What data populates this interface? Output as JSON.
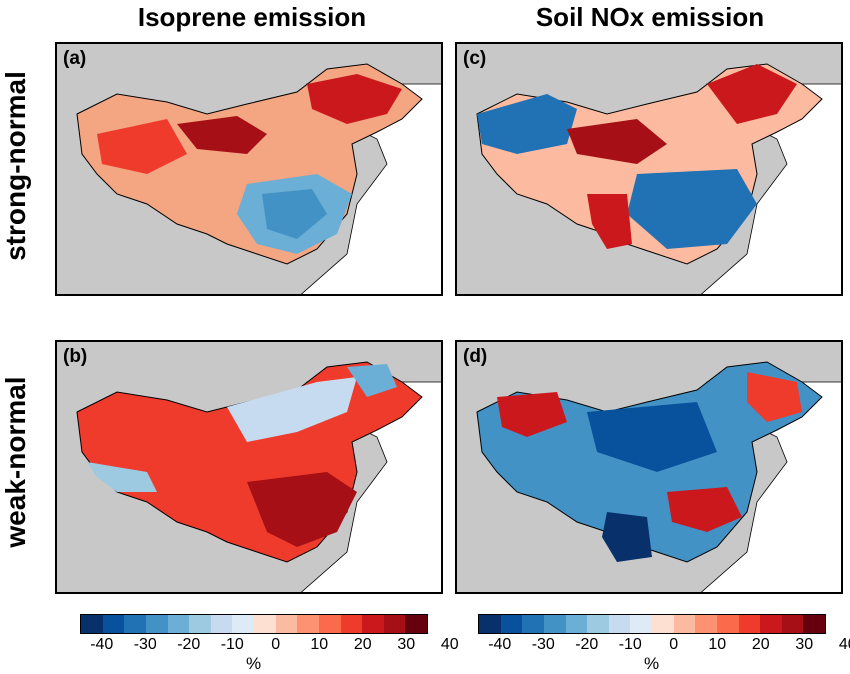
{
  "columns": [
    "Isoprene emission",
    "Soil NOx emission"
  ],
  "rows": [
    "strong-normal",
    "weak-normal"
  ],
  "panels": [
    {
      "label": "(a)",
      "variable": "Isoprene emission",
      "comparison": "strong-normal"
    },
    {
      "label": "(b)",
      "variable": "Isoprene emission",
      "comparison": "weak-normal"
    },
    {
      "label": "(c)",
      "variable": "Soil NOx emission",
      "comparison": "strong-normal"
    },
    {
      "label": "(d)",
      "variable": "Soil NOx emission",
      "comparison": "weak-normal"
    }
  ],
  "colorbar": {
    "ticks": [
      "-40",
      "-30",
      "-20",
      "-10",
      "0",
      "10",
      "20",
      "30",
      "40"
    ],
    "unit": "%",
    "range": [
      -45,
      45
    ],
    "colors": [
      "#08306b",
      "#08519c",
      "#2171b5",
      "#4292c6",
      "#6baed6",
      "#9ecae1",
      "#c6dbef",
      "#deebf7",
      "#fee0d2",
      "#fcbba1",
      "#fc9272",
      "#fb6a4a",
      "#ef3b2c",
      "#cb181d",
      "#a50f15",
      "#67000d"
    ]
  },
  "map_colors": {
    "land_nodata": "#c8c8c8",
    "ocean": "#ffffff",
    "border": "#000000"
  }
}
